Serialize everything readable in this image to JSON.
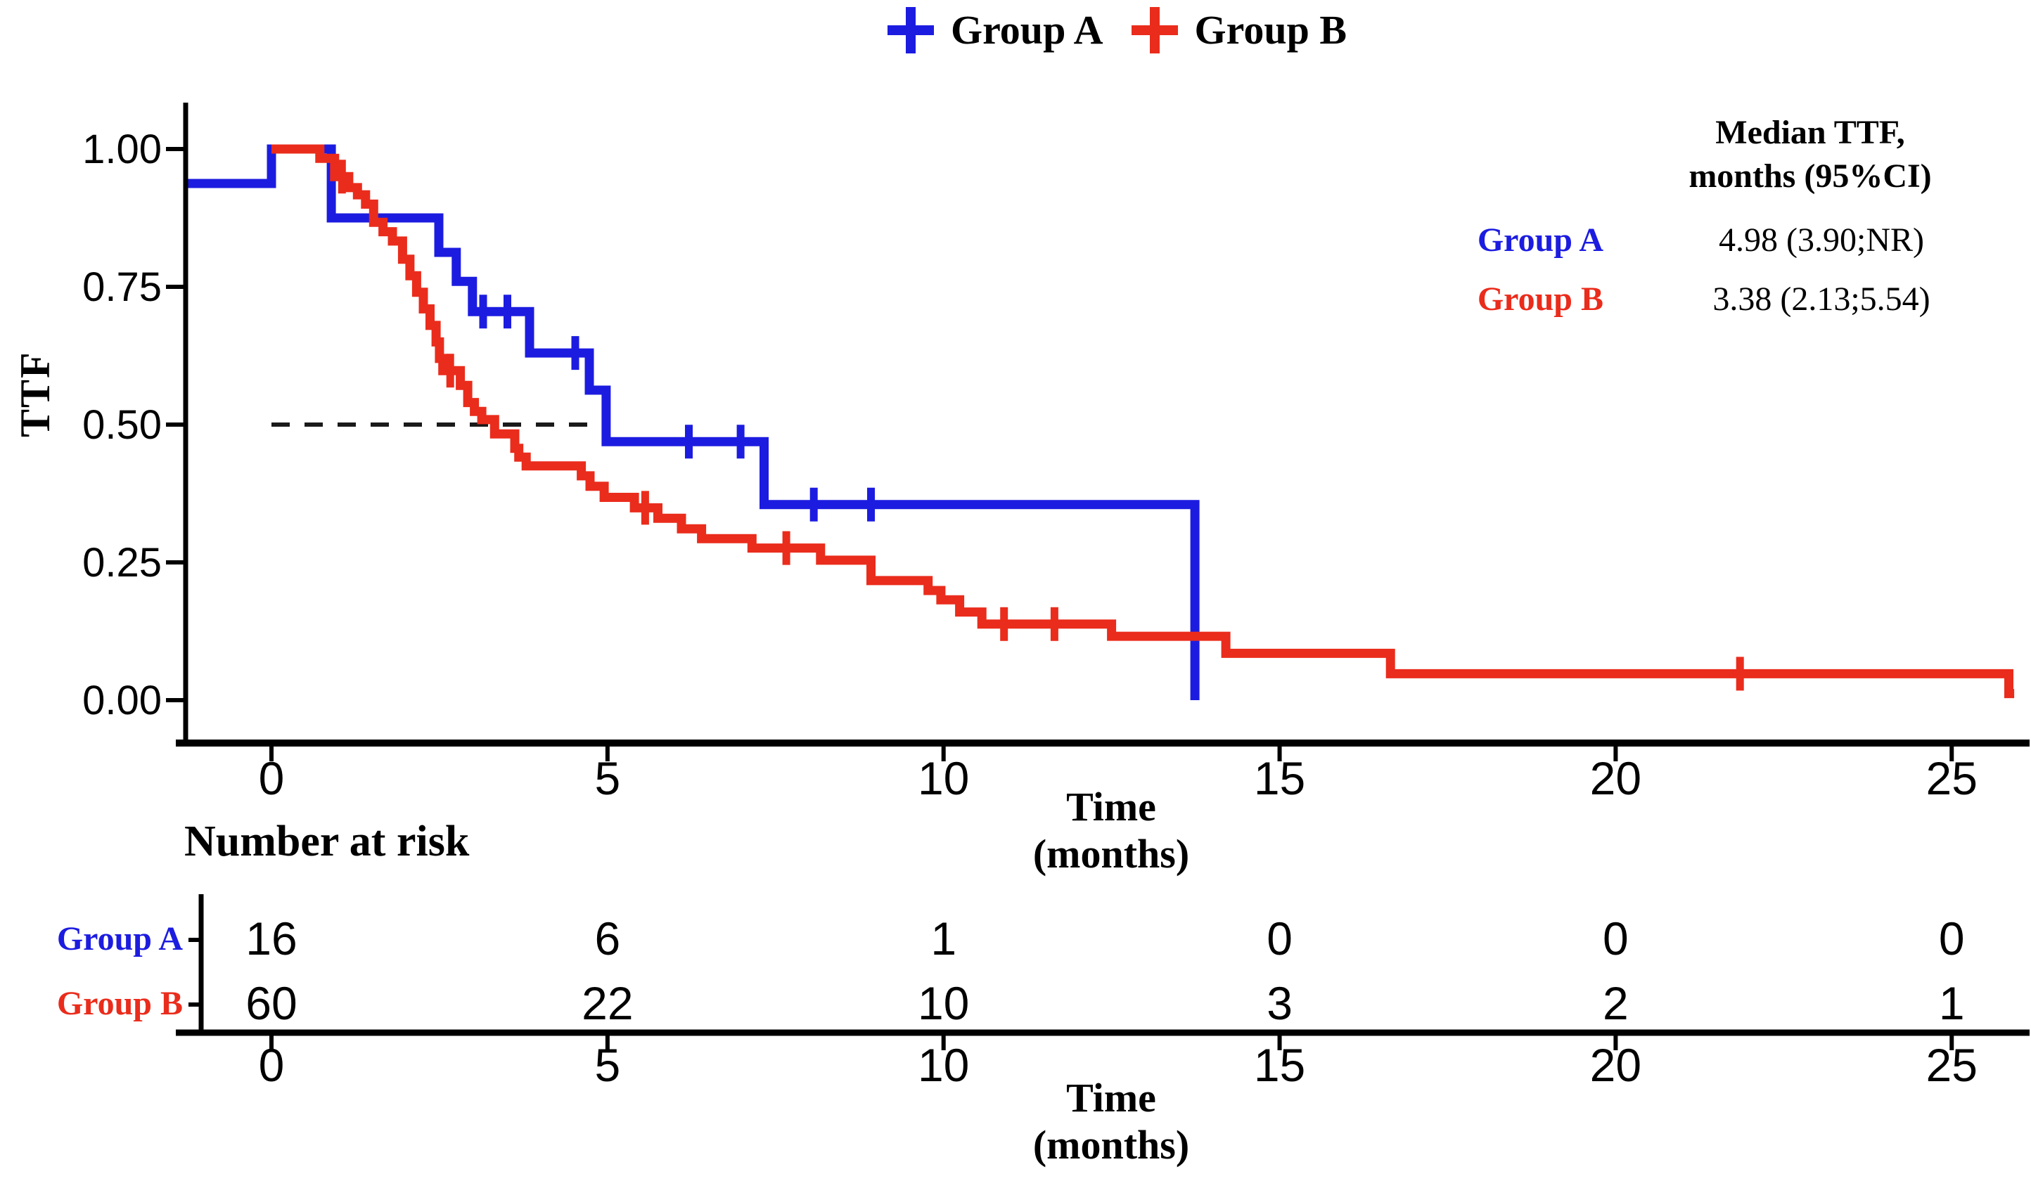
{
  "colors": {
    "group_a": "#1c1ce0",
    "group_b": "#ea2c1c",
    "axis": "#000000",
    "dashed_line": "#1a1a1a"
  },
  "legend": {
    "items": [
      {
        "label": "Group A",
        "color_key": "group_a",
        "symbol": "plus-cross"
      },
      {
        "label": "Group B",
        "color_key": "group_b",
        "symbol": "plus-cross"
      }
    ]
  },
  "y_axis": {
    "label": "TTF"
  },
  "x_axis": {
    "label_line1": "Time",
    "label_line2": "(months)"
  },
  "median_box": {
    "header_line1": "Median TTF,",
    "header_line2": "months (95%CI)",
    "rows": [
      {
        "label": "Group A",
        "value": "4.98 (3.90;NR)",
        "color_key": "group_a"
      },
      {
        "label": "Group B",
        "value": "3.38 (2.13;5.54)",
        "color_key": "group_b"
      }
    ]
  },
  "risk_table": {
    "title": "Number at risk",
    "time_ticks": [
      0,
      5,
      10,
      15,
      20,
      25
    ],
    "rows": [
      {
        "label": "Group A",
        "color_key": "group_a",
        "counts": [
          "16",
          "6",
          "1",
          "0",
          "0",
          "0"
        ]
      },
      {
        "label": "Group B",
        "color_key": "group_b",
        "counts": [
          "60",
          "22",
          "10",
          "3",
          "2",
          "1"
        ]
      }
    ]
  },
  "chart_data": {
    "type": "line",
    "subtype": "kaplan-meier-step",
    "title": "",
    "xlabel": "Time (months)",
    "ylabel": "TTF",
    "xlim": [
      -1.28,
      26.2
    ],
    "ylim": [
      0,
      1.0
    ],
    "grid": false,
    "x_ticks": [
      0,
      5,
      10,
      15,
      20,
      25
    ],
    "y_ticks": [
      {
        "v": 1.0,
        "label": "1.00"
      },
      {
        "v": 0.75,
        "label": "0.75"
      },
      {
        "v": 0.5,
        "label": "0.50"
      },
      {
        "v": 0.25,
        "label": "0.25"
      },
      {
        "v": 0.0,
        "label": "0.00"
      }
    ],
    "median_reference_line": {
      "y": 0.5,
      "x_start": 0,
      "x_end": 4.98,
      "style": "dashed"
    },
    "series": [
      {
        "name": "Group A",
        "color_key": "group_a",
        "median_months": "4.98 (3.90;NR)",
        "steps": [
          [
            -1.28,
            0.9375
          ],
          [
            0,
            0.9375
          ],
          [
            0,
            1.0
          ],
          [
            0.89,
            1.0
          ],
          [
            0.89,
            0.875
          ],
          [
            2.49,
            0.875
          ],
          [
            2.49,
            0.8125
          ],
          [
            2.75,
            0.8125
          ],
          [
            2.75,
            0.76
          ],
          [
            2.99,
            0.76
          ],
          [
            2.99,
            0.705
          ],
          [
            3.84,
            0.705
          ],
          [
            3.84,
            0.63
          ],
          [
            4.73,
            0.63
          ],
          [
            4.73,
            0.5625
          ],
          [
            4.98,
            0.5625
          ],
          [
            4.98,
            0.469
          ],
          [
            7.33,
            0.469
          ],
          [
            7.33,
            0.355
          ],
          [
            13.74,
            0.355
          ],
          [
            13.74,
            0.0
          ]
        ],
        "censors": [
          [
            3.15,
            0.705
          ],
          [
            3.51,
            0.705
          ],
          [
            4.52,
            0.63
          ],
          [
            6.21,
            0.469
          ],
          [
            6.98,
            0.469
          ],
          [
            8.07,
            0.355
          ],
          [
            8.92,
            0.355
          ]
        ]
      },
      {
        "name": "Group B",
        "color_key": "group_b",
        "median_months": "3.38 (2.13;5.54)",
        "steps": [
          [
            0,
            1.0
          ],
          [
            0.72,
            1.0
          ],
          [
            0.72,
            0.983
          ],
          [
            0.94,
            0.983
          ],
          [
            0.94,
            0.95
          ],
          [
            1.15,
            0.95
          ],
          [
            1.15,
            0.93
          ],
          [
            1.28,
            0.93
          ],
          [
            1.28,
            0.917
          ],
          [
            1.4,
            0.917
          ],
          [
            1.4,
            0.9
          ],
          [
            1.52,
            0.9
          ],
          [
            1.52,
            0.867
          ],
          [
            1.66,
            0.867
          ],
          [
            1.66,
            0.85
          ],
          [
            1.8,
            0.85
          ],
          [
            1.8,
            0.833
          ],
          [
            1.95,
            0.833
          ],
          [
            1.95,
            0.8
          ],
          [
            2.06,
            0.8
          ],
          [
            2.06,
            0.77
          ],
          [
            2.16,
            0.77
          ],
          [
            2.16,
            0.74
          ],
          [
            2.26,
            0.74
          ],
          [
            2.26,
            0.71
          ],
          [
            2.36,
            0.71
          ],
          [
            2.36,
            0.68
          ],
          [
            2.45,
            0.68
          ],
          [
            2.45,
            0.65
          ],
          [
            2.5,
            0.65
          ],
          [
            2.5,
            0.62
          ],
          [
            2.55,
            0.62
          ],
          [
            2.55,
            0.598
          ],
          [
            2.81,
            0.598
          ],
          [
            2.81,
            0.571
          ],
          [
            2.92,
            0.571
          ],
          [
            2.92,
            0.54
          ],
          [
            3.02,
            0.54
          ],
          [
            3.02,
            0.524
          ],
          [
            3.13,
            0.524
          ],
          [
            3.13,
            0.509
          ],
          [
            3.32,
            0.509
          ],
          [
            3.32,
            0.483
          ],
          [
            3.62,
            0.483
          ],
          [
            3.62,
            0.457
          ],
          [
            3.68,
            0.457
          ],
          [
            3.68,
            0.441
          ],
          [
            3.79,
            0.441
          ],
          [
            3.79,
            0.425
          ],
          [
            4.61,
            0.425
          ],
          [
            4.61,
            0.407
          ],
          [
            4.74,
            0.407
          ],
          [
            4.74,
            0.388
          ],
          [
            4.95,
            0.388
          ],
          [
            4.95,
            0.368
          ],
          [
            5.4,
            0.368
          ],
          [
            5.4,
            0.349
          ],
          [
            5.75,
            0.349
          ],
          [
            5.75,
            0.33
          ],
          [
            6.1,
            0.33
          ],
          [
            6.1,
            0.311
          ],
          [
            6.4,
            0.311
          ],
          [
            6.4,
            0.293
          ],
          [
            7.15,
            0.293
          ],
          [
            7.15,
            0.276
          ],
          [
            8.17,
            0.276
          ],
          [
            8.17,
            0.254
          ],
          [
            8.92,
            0.254
          ],
          [
            8.92,
            0.217
          ],
          [
            9.77,
            0.217
          ],
          [
            9.77,
            0.199
          ],
          [
            9.96,
            0.199
          ],
          [
            9.96,
            0.182
          ],
          [
            10.24,
            0.182
          ],
          [
            10.24,
            0.16
          ],
          [
            10.57,
            0.16
          ],
          [
            10.57,
            0.138
          ],
          [
            12.5,
            0.138
          ],
          [
            12.5,
            0.116
          ],
          [
            14.2,
            0.116
          ],
          [
            14.2,
            0.085
          ],
          [
            16.65,
            0.085
          ],
          [
            16.65,
            0.048
          ],
          [
            25.85,
            0.048
          ],
          [
            25.85,
            0.012
          ],
          [
            25.93,
            0.012
          ]
        ],
        "censors": [
          [
            1.05,
            0.95
          ],
          [
            2.66,
            0.598
          ],
          [
            5.56,
            0.349
          ],
          [
            7.66,
            0.276
          ],
          [
            10.9,
            0.138
          ],
          [
            11.65,
            0.138
          ],
          [
            21.85,
            0.048
          ]
        ]
      }
    ]
  }
}
